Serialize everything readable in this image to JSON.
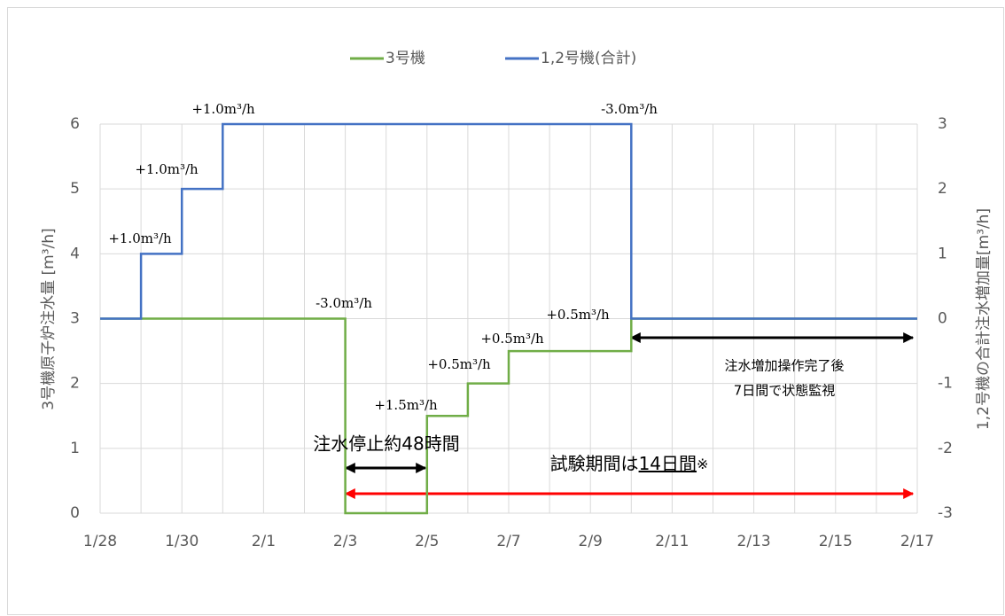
{
  "chart_data": {
    "type": "step",
    "y_label": "3号機原子炉注水量 [m³/h]",
    "y2_label": "1,2号機の合計注水増加量[m³/h]",
    "xticks": [
      "1/28",
      "1/30",
      "2/1",
      "2/3",
      "2/5",
      "2/7",
      "2/9",
      "2/11",
      "2/13",
      "2/15",
      "2/17"
    ],
    "ylim": [
      0,
      6
    ],
    "yticks": [
      0,
      1,
      2,
      3,
      4,
      5,
      6
    ],
    "y2lim": [
      -3,
      3
    ],
    "y2ticks": [
      -3,
      -2,
      -1,
      0,
      1,
      2,
      3
    ],
    "grid": true,
    "legend": "top",
    "series": [
      {
        "name": "3号機",
        "color": "#70ad47",
        "x": [
          "1/28",
          "2/3",
          "2/5",
          "2/6",
          "2/7",
          "2/10",
          "2/17"
        ],
        "values": [
          3,
          0,
          1.5,
          2,
          2.5,
          3,
          3
        ]
      },
      {
        "name": "1,2号機(合計)",
        "color": "#4472c4",
        "axis": "y2",
        "x": [
          "1/28",
          "1/29",
          "1/30",
          "1/31",
          "2/10",
          "2/17"
        ],
        "values": [
          0,
          1,
          2,
          3,
          0,
          0
        ]
      }
    ],
    "annotations": [
      "+1.0m³/h",
      "+1.0m³/h",
      "+1.0m³/h",
      "-3.0m³/h",
      "-3.0m³/h",
      "+1.5m³/h",
      "+0.5m³/h",
      "+0.5m³/h",
      "+0.5m³/h",
      "注水増加操作完了後",
      "7日間で状態監視",
      "注水停止約48時間"
    ],
    "test_period": [
      "試験期間は",
      "14日間",
      "※"
    ]
  }
}
